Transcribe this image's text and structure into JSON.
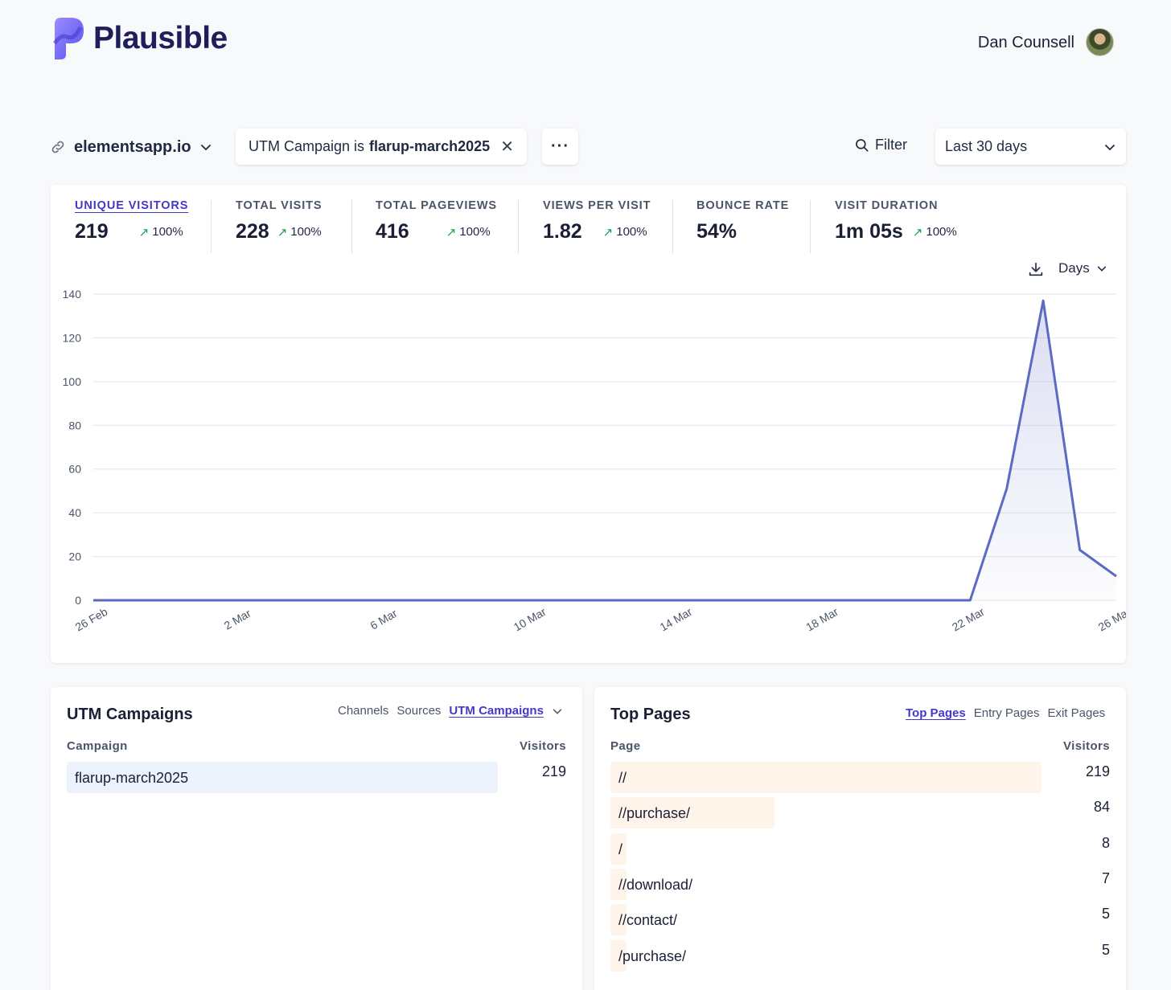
{
  "brand": {
    "name": "Plausible",
    "accent": "#5850ec"
  },
  "user": {
    "name": "Dan Counsell"
  },
  "toolbar": {
    "site": "elementsapp.io",
    "filter_prefix": "UTM Campaign is",
    "filter_value": "flarup-march2025",
    "more_label": "···",
    "filter_button": "Filter",
    "period": "Last 30 days"
  },
  "metrics": [
    {
      "label": "UNIQUE VISITORS",
      "value": "219",
      "change": "100%"
    },
    {
      "label": "TOTAL VISITS",
      "value": "228",
      "change": "100%"
    },
    {
      "label": "TOTAL PAGEVIEWS",
      "value": "416",
      "change": "100%"
    },
    {
      "label": "VIEWS PER VISIT",
      "value": "1.82",
      "change": "100%"
    },
    {
      "label": "BOUNCE RATE",
      "value": "54%",
      "change": ""
    },
    {
      "label": "VISIT DURATION",
      "value": "1m 05s",
      "change": "100%"
    }
  ],
  "interval": {
    "label": "Days"
  },
  "chart_data": {
    "type": "area",
    "series": [
      {
        "values": [
          0,
          0,
          0,
          0,
          0,
          0,
          0,
          0,
          0,
          0,
          0,
          0,
          0,
          0,
          0,
          0,
          0,
          0,
          0,
          0,
          0,
          0,
          0,
          0,
          0,
          51,
          137,
          23,
          11
        ]
      }
    ],
    "x": [
      "26 Feb",
      "27 Feb",
      "28 Feb",
      "1 Mar",
      "2 Mar",
      "3 Mar",
      "4 Mar",
      "5 Mar",
      "6 Mar",
      "7 Mar",
      "8 Mar",
      "9 Mar",
      "10 Mar",
      "11 Mar",
      "12 Mar",
      "13 Mar",
      "14 Mar",
      "15 Mar",
      "16 Mar",
      "17 Mar",
      "18 Mar",
      "19 Mar",
      "20 Mar",
      "21 Mar",
      "22 Mar",
      "23 Mar",
      "24 Mar",
      "25 Mar",
      "26 Mar"
    ],
    "xticks": [
      "26 Feb",
      "2 Mar",
      "6 Mar",
      "10 Mar",
      "14 Mar",
      "18 Mar",
      "22 Mar",
      "26 Mar"
    ],
    "yticks": [
      "0",
      "20",
      "40",
      "60",
      "80",
      "100",
      "120",
      "140"
    ],
    "ylim": [
      0,
      140
    ],
    "grid": true,
    "color": "#5b6ac4"
  },
  "utm": {
    "title": "UTM Campaigns",
    "tabs": [
      "Channels",
      "Sources",
      "UTM Campaigns"
    ],
    "col_label": "Campaign",
    "col_value": "Visitors",
    "rows": [
      {
        "label": "flarup-march2025",
        "value": "219",
        "share": 1.0
      }
    ]
  },
  "pages": {
    "title": "Top Pages",
    "tabs": [
      "Top Pages",
      "Entry Pages",
      "Exit Pages"
    ],
    "col_label": "Page",
    "col_value": "Visitors",
    "rows": [
      {
        "label": "//",
        "value": "219",
        "share": 1.0
      },
      {
        "label": "//purchase/",
        "value": "84",
        "share": 0.38
      },
      {
        "label": "/",
        "value": "8",
        "share": 0.037
      },
      {
        "label": "//download/",
        "value": "7",
        "share": 0.032
      },
      {
        "label": "//contact/",
        "value": "5",
        "share": 0.023
      },
      {
        "label": "/purchase/",
        "value": "5",
        "share": 0.023
      }
    ]
  }
}
